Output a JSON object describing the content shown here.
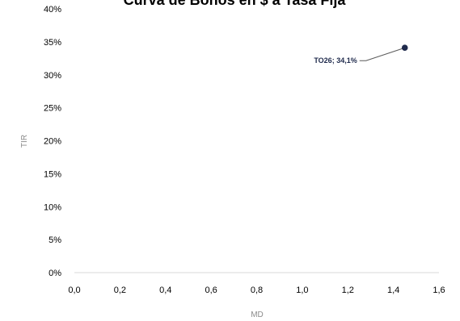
{
  "chart_data": {
    "type": "scatter",
    "title": "Curva de Bonos en $ a Tasa Fija",
    "xlabel": "MD",
    "ylabel": "TIR",
    "xlim": [
      0,
      1.6
    ],
    "ylim": [
      0,
      0.4
    ],
    "x_ticks": [
      "0,0",
      "0,2",
      "0,4",
      "0,6",
      "0,8",
      "1,0",
      "1,2",
      "1,4",
      "1,6"
    ],
    "y_ticks": [
      "0%",
      "5%",
      "10%",
      "15%",
      "20%",
      "25%",
      "30%",
      "35%",
      "40%"
    ],
    "grid": false,
    "legend": "none",
    "marker_color": "#1f2a4c",
    "points": [
      {
        "label": "TO26; 34,1%",
        "x": 1.45,
        "y": 0.341
      }
    ]
  }
}
